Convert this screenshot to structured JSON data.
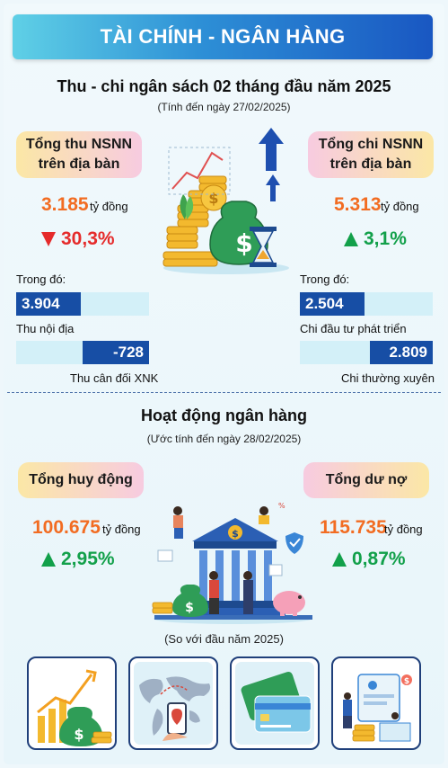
{
  "header": {
    "title": "TÀI CHÍNH - NGÂN HÀNG"
  },
  "budget": {
    "title": "Thu - chi ngân sách 02 tháng đầu năm 2025",
    "subtitle": "(Tính đến ngày 27/02/2025)",
    "revenue": {
      "label_line1": "Tổng thu NSNN",
      "label_line2": "trên địa bàn",
      "value": "3.185",
      "unit": "tỷ đồng",
      "change": "30,3%",
      "direction": "down",
      "breakdown_label": "Trong đó:",
      "items": [
        {
          "value": "3.904",
          "label": "Thu nội địa"
        },
        {
          "value": "-728",
          "label": "Thu cân đối XNK"
        }
      ]
    },
    "expenditure": {
      "label_line1": "Tổng chi NSNN",
      "label_line2": "trên địa bàn",
      "value": "5.313",
      "unit": "tỷ đồng",
      "change": "3,1%",
      "direction": "up",
      "breakdown_label": "Trong đó:",
      "items": [
        {
          "value": "2.504",
          "label": "Chi đầu tư phát triển"
        },
        {
          "value": "2.809",
          "label": "Chi thường xuyên"
        }
      ]
    }
  },
  "banking": {
    "title": "Hoạt động ngân hàng",
    "subtitle": "(Ước tính đến ngày 28/02/2025)",
    "deposits": {
      "label": "Tổng huy động",
      "value": "100.675",
      "unit": "tỷ đồng",
      "change": "2,95%",
      "direction": "up"
    },
    "loans": {
      "label": "Tổng dư nợ",
      "value": "115.735",
      "unit": "tỷ đồng",
      "change": "0,87%",
      "direction": "up"
    },
    "comparison_note": "(So với đầu năm 2025)"
  },
  "illustrations": {
    "top_center": "money-growth-icon",
    "bank": "bank-building-icon",
    "tiles": [
      "growth-chart-icon",
      "world-map-icon",
      "credit-card-icon",
      "financial-dashboard-icon"
    ]
  },
  "colors": {
    "banner_start": "#5fd0e6",
    "banner_end": "#1957c2",
    "accent_orange": "#f26c22",
    "down_red": "#e52b2b",
    "up_green": "#12a04a",
    "bar_navy": "#174ea5",
    "bar_light": "#d3f0f8"
  }
}
